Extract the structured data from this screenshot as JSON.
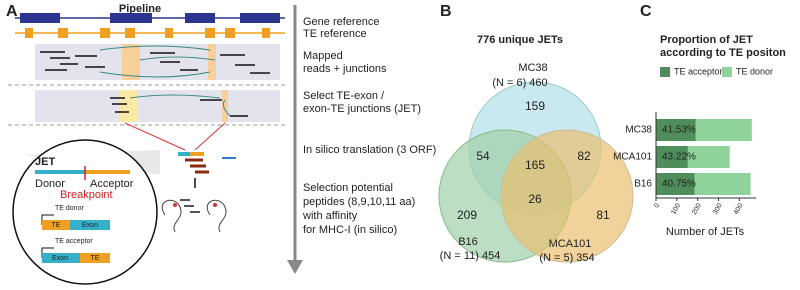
{
  "panel_a": {
    "letter": "A",
    "title": "Pipeline",
    "steps": [
      "Gene reference",
      "TE reference",
      "Mapped",
      "reads + junctions",
      "Select TE-exon /",
      "exon-TE junctions (JET)",
      "In silico translation (3 ORF)",
      "Selection potential",
      "peptides (8,9,10,11 aa)",
      "with affinity",
      "for MHC-I (in silico)"
    ],
    "inset": {
      "jet": "JET",
      "donor": "Donor",
      "acceptor": "Acceptor",
      "breakpoint": "Breakpoint",
      "te_donor": "TE donor",
      "te_acceptor": "TE acceptor",
      "te": "TE",
      "exon": "Exon"
    }
  },
  "panel_b": {
    "letter": "B",
    "title": "776 unique JETs",
    "sets": [
      {
        "name": "MC38",
        "detail": "(N = 6) 460"
      },
      {
        "name": "B16",
        "detail": "(N = 11) 454"
      },
      {
        "name": "MCA101",
        "detail": "(N = 5) 354"
      }
    ],
    "regions": [
      "159",
      "54",
      "165",
      "82",
      "209",
      "26",
      "81"
    ]
  },
  "chart_data": {
    "type": "stacked_barh",
    "letter": "C",
    "title": [
      "Proportion of JET",
      "according to TE positon"
    ],
    "categories": [
      "MC38",
      "MCA101",
      "B16"
    ],
    "series": [
      {
        "name": "TE acceptor",
        "color": "#4f8d5b",
        "values": [
          191,
          153,
          185
        ]
      },
      {
        "name": "TE donor",
        "color": "#8fd39b",
        "values": [
          269,
          201,
          269
        ]
      }
    ],
    "share_labels": [
      "41.53%",
      "43.22%",
      "40.75%"
    ],
    "xlabel": "Number of JETs",
    "xlim": [
      0,
      480
    ],
    "xticks": [
      0,
      100,
      200,
      300,
      400
    ]
  }
}
